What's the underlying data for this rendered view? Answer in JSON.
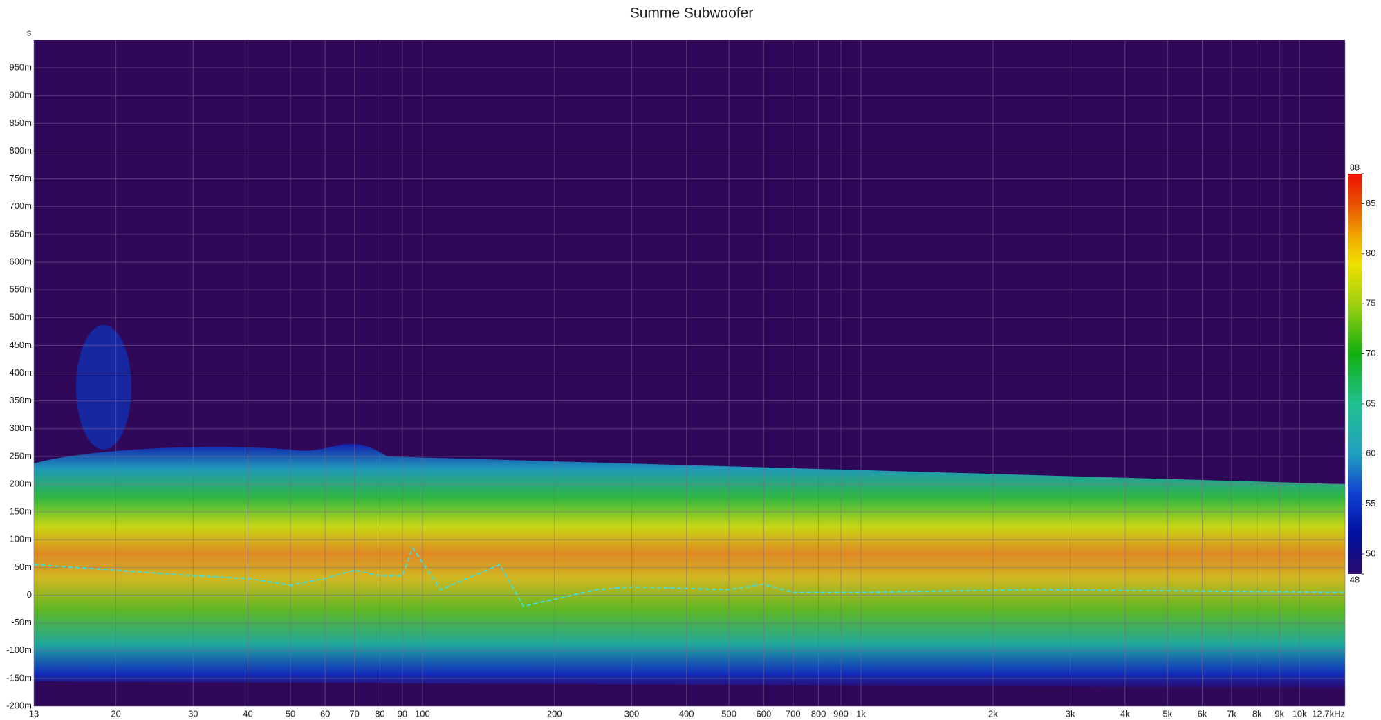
{
  "chart_data": {
    "type": "spectrogram",
    "title": "Summe Subwoofer",
    "y_label": "s",
    "xscale": "log",
    "grid": true,
    "xlim": [
      13,
      12700
    ],
    "xticks": [
      13,
      20,
      30,
      40,
      50,
      60,
      70,
      80,
      90,
      100,
      200,
      300,
      400,
      500,
      600,
      700,
      800,
      900,
      {
        "value": 1000,
        "label": "1k"
      },
      {
        "value": 2000,
        "label": "2k"
      },
      {
        "value": 3000,
        "label": "3k"
      },
      {
        "value": 4000,
        "label": "4k"
      },
      {
        "value": 5000,
        "label": "5k"
      },
      {
        "value": 6000,
        "label": "6k"
      },
      {
        "value": 7000,
        "label": "7k"
      },
      {
        "value": 8000,
        "label": "8k"
      },
      {
        "value": 9000,
        "label": "9k"
      },
      {
        "value": 10000,
        "label": "10k"
      },
      {
        "value": 12700,
        "label": "12.7kHz"
      }
    ],
    "ylim": [
      -0.2,
      1.0
    ],
    "yticks": [
      {
        "value": -0.2,
        "label": "-200m"
      },
      {
        "value": -0.15,
        "label": "-150m"
      },
      {
        "value": -0.1,
        "label": "-100m"
      },
      {
        "value": -0.05,
        "label": "-50m"
      },
      0,
      {
        "value": 0.05,
        "label": "50m"
      },
      {
        "value": 0.1,
        "label": "100m"
      },
      {
        "value": 0.15,
        "label": "150m"
      },
      {
        "value": 0.2,
        "label": "200m"
      },
      {
        "value": 0.25,
        "label": "250m"
      },
      {
        "value": 0.3,
        "label": "300m"
      },
      {
        "value": 0.35,
        "label": "350m"
      },
      {
        "value": 0.4,
        "label": "400m"
      },
      {
        "value": 0.45,
        "label": "450m"
      },
      {
        "value": 0.5,
        "label": "500m"
      },
      {
        "value": 0.55,
        "label": "550m"
      },
      {
        "value": 0.6,
        "label": "600m"
      },
      {
        "value": 0.65,
        "label": "650m"
      },
      {
        "value": 0.7,
        "label": "700m"
      },
      {
        "value": 0.75,
        "label": "750m"
      },
      {
        "value": 0.8,
        "label": "800m"
      },
      {
        "value": 0.85,
        "label": "850m"
      },
      {
        "value": 0.9,
        "label": "900m"
      },
      {
        "value": 0.95,
        "label": "950m"
      }
    ],
    "zlim": [
      48,
      88
    ],
    "zticks": [
      48,
      50,
      55,
      60,
      65,
      70,
      75,
      80,
      85,
      88
    ],
    "colorscale": [
      [
        48,
        "#2a0a6e"
      ],
      [
        52,
        "#0010a0"
      ],
      [
        56,
        "#1040d0"
      ],
      [
        60,
        "#20a0c0"
      ],
      [
        65,
        "#20c090"
      ],
      [
        70,
        "#10b010"
      ],
      [
        75,
        "#a0d010"
      ],
      [
        79,
        "#f0e000"
      ],
      [
        82,
        "#f0a000"
      ],
      [
        85,
        "#e85000"
      ],
      [
        88,
        "#f01000"
      ]
    ],
    "series": [
      {
        "color": "#40e0e0",
        "line_style": "dashed",
        "x": [
          13,
          20,
          30,
          40,
          50,
          60,
          70,
          80,
          90,
          95,
          110,
          150,
          170,
          250,
          300,
          500,
          600,
          700,
          1000,
          2500,
          12700
        ],
        "values": [
          0.055,
          0.045,
          0.035,
          0.03,
          0.018,
          0.03,
          0.045,
          0.035,
          0.035,
          0.085,
          0.01,
          0.055,
          -0.02,
          0.01,
          0.015,
          0.01,
          0.02,
          0.005,
          0.005,
          0.01,
          0.005
        ]
      }
    ]
  }
}
